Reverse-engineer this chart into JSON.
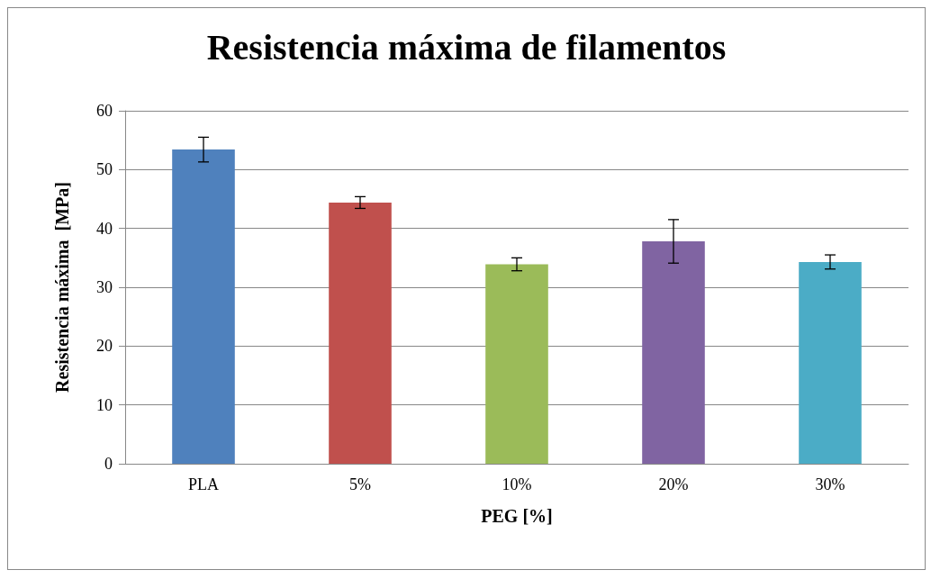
{
  "chart_data": {
    "type": "bar",
    "title": "Resistencia máxima de filamentos",
    "xlabel": "PEG [%]",
    "ylabel": "Resistencia máxima  [MPa]",
    "categories": [
      "PLA",
      "5%",
      "10%",
      "20%",
      "30%"
    ],
    "values": [
      53.4,
      44.4,
      33.9,
      37.8,
      34.3
    ],
    "errors": [
      2.1,
      1.0,
      1.1,
      3.7,
      1.2
    ],
    "colors": [
      "#4f81bd",
      "#c0504d",
      "#9bbb59",
      "#8064a2",
      "#4bacc6"
    ],
    "ylim": [
      0,
      60
    ],
    "yticks": [
      0,
      10,
      20,
      30,
      40,
      50,
      60
    ],
    "grid": "y"
  }
}
